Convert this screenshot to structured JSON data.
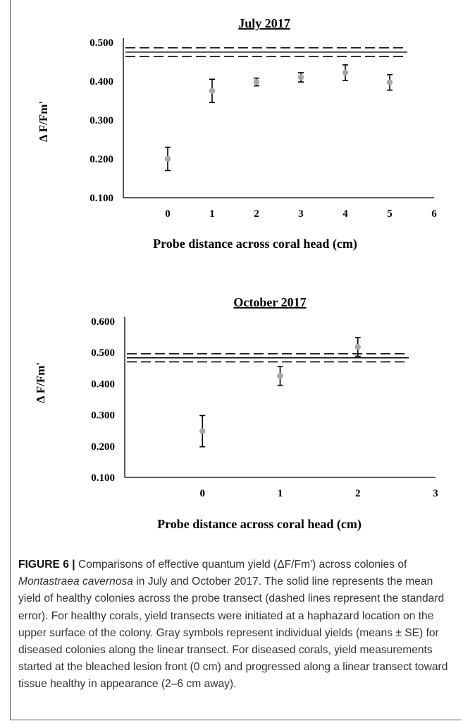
{
  "caption": {
    "lead": "FIGURE 6 |",
    "part1": " Comparisons of effective quantum yield (ΔF/Fm') across colonies of ",
    "species": "Montastraea cavernosa",
    "part2": " in July and October 2017. The solid line represents the mean yield of healthy colonies across the probe transect (dashed lines represent the standard error). For healthy corals, yield transects were initiated at a haphazard location on the upper surface of the colony. Gray symbols represent individual yields (means ± SE) for diseased colonies along the linear transect. For diseased corals, yield measurements started at the bleached lesion front (0 cm) and progressed along a linear transect toward tissue healthy in appearance (2–6 cm away)."
  },
  "chart_data": [
    {
      "type": "scatter",
      "title": "July 2017",
      "xlabel": "Probe distance across coral head (cm)",
      "ylabel": "Δ F/Fm'",
      "xlim": [
        -1,
        6
      ],
      "ylim": [
        0.1,
        0.5
      ],
      "xticks": [
        0,
        1,
        2,
        3,
        4,
        5,
        6
      ],
      "yticks": [
        "0.100",
        "0.200",
        "0.300",
        "0.400",
        "0.500"
      ],
      "grid": false,
      "points": [
        {
          "x": 0,
          "y": 0.2,
          "se": 0.03
        },
        {
          "x": 1,
          "y": 0.375,
          "se": 0.03
        },
        {
          "x": 2,
          "y": 0.398,
          "se": 0.01
        },
        {
          "x": 3,
          "y": 0.41,
          "se": 0.012
        },
        {
          "x": 4,
          "y": 0.422,
          "se": 0.02
        },
        {
          "x": 5,
          "y": 0.397,
          "se": 0.02
        }
      ],
      "healthy_mean": 0.475,
      "healthy_se": 0.011,
      "marker_color": "#a6a6a6",
      "line_color": "#000000"
    },
    {
      "type": "scatter",
      "title": "October 2017",
      "xlabel": "Probe distance across coral head (cm)",
      "ylabel": "Δ F/Fm'",
      "xlim": [
        -1,
        3
      ],
      "ylim": [
        0.1,
        0.6
      ],
      "xticks": [
        0,
        1,
        2,
        3
      ],
      "yticks": [
        "0.100",
        "0.200",
        "0.300",
        "0.400",
        "0.500",
        "0.600"
      ],
      "grid": false,
      "points": [
        {
          "x": 0,
          "y": 0.248,
          "se": 0.05
        },
        {
          "x": 1,
          "y": 0.425,
          "se": 0.03
        },
        {
          "x": 2,
          "y": 0.518,
          "se": 0.03
        }
      ],
      "healthy_mean": 0.483,
      "healthy_se": 0.013,
      "marker_color": "#a6a6a6",
      "line_color": "#000000"
    }
  ]
}
